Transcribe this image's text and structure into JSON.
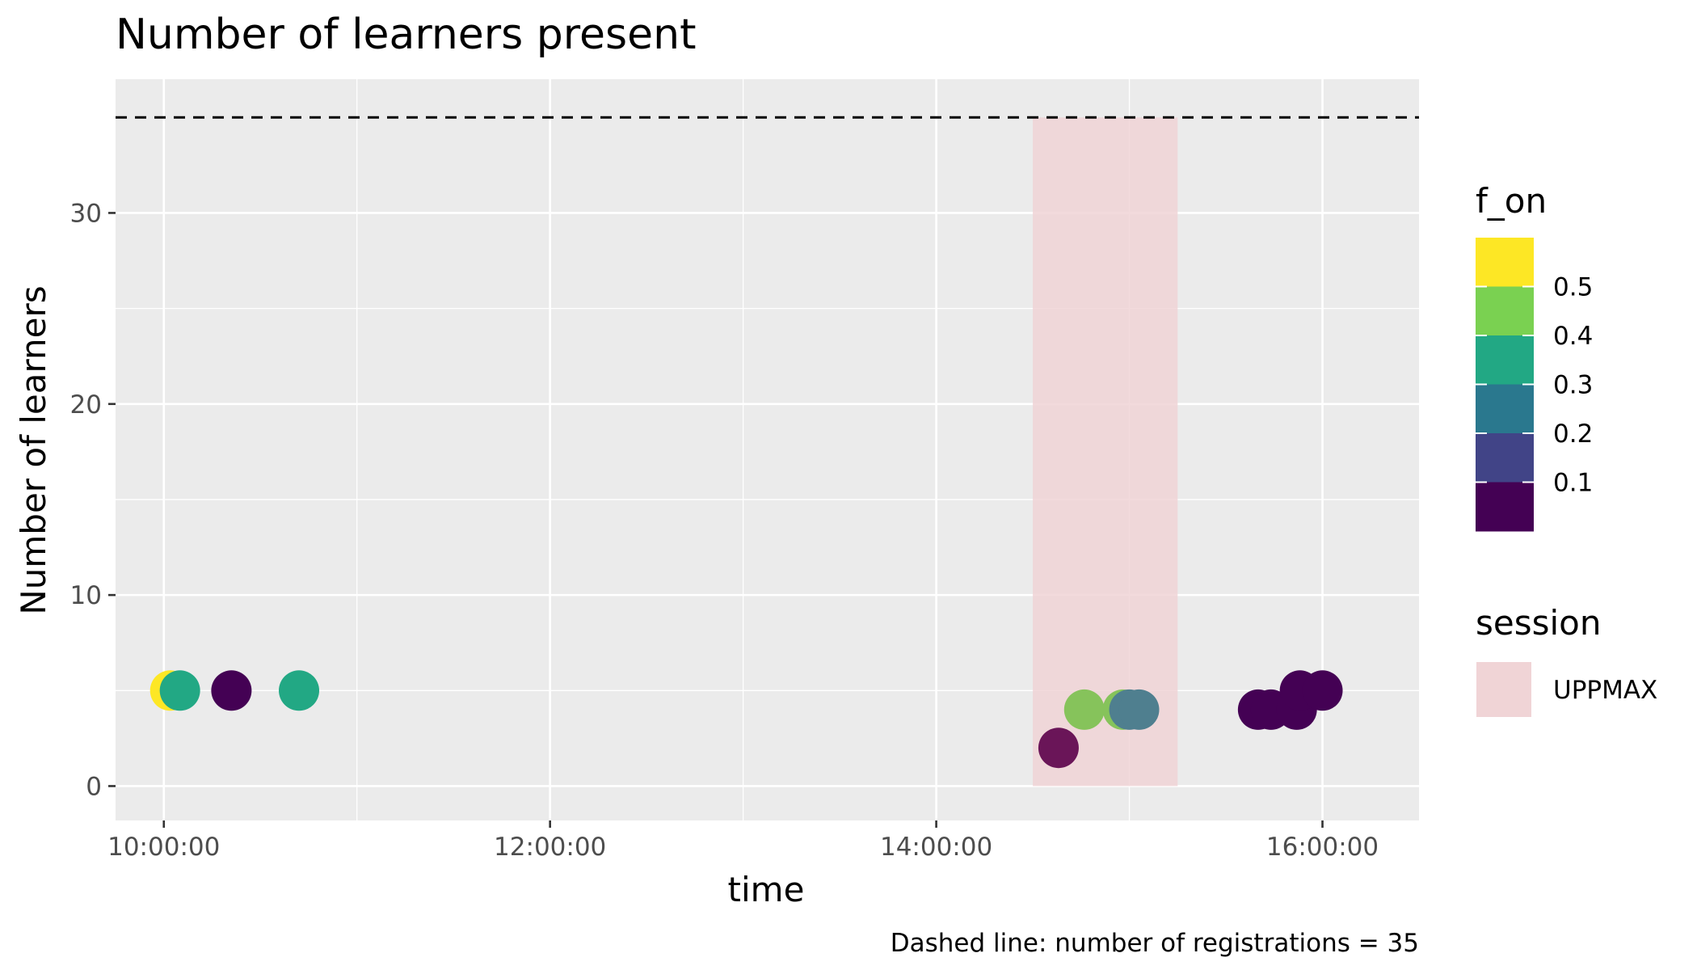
{
  "chart_data": {
    "type": "scatter",
    "title": "Number of learners present",
    "xlabel": "time",
    "ylabel": "Number of learners",
    "caption": "Dashed line: number of registrations = 35",
    "xlim": [
      "09:45:00",
      "16:30:00"
    ],
    "ylim": [
      -1.8,
      37
    ],
    "x_ticks": [
      "10:00:00",
      "12:00:00",
      "14:00:00",
      "16:00:00"
    ],
    "y_ticks": [
      0,
      10,
      20,
      30
    ],
    "grid": true,
    "reference_line": {
      "y": 35,
      "style": "dashed"
    },
    "shaded_region": {
      "name": "UPPMAX",
      "x_start": "14:30:00",
      "x_end": "15:15:00",
      "y_start": 0,
      "y_end": 35,
      "color": "#f0d4d6"
    },
    "color_legend": {
      "title": "f_on",
      "placement": "right",
      "labels": [
        "0.5",
        "0.4",
        "0.3",
        "0.2",
        "0.1"
      ],
      "colors": [
        "#fde725",
        "#7ad151",
        "#22a884",
        "#2a788e",
        "#414487",
        "#440154"
      ]
    },
    "session_legend": {
      "title": "session",
      "entries": [
        {
          "label": "UPPMAX",
          "color": "#f0d4d6"
        }
      ]
    },
    "points": [
      {
        "time": "10:02:00",
        "y": 5,
        "f_on": 0.58,
        "color": "#fde725"
      },
      {
        "time": "10:05:00",
        "y": 5,
        "f_on": 0.33,
        "color": "#22a884"
      },
      {
        "time": "10:21:00",
        "y": 5,
        "f_on": 0.02,
        "color": "#440154"
      },
      {
        "time": "10:42:00",
        "y": 5,
        "f_on": 0.33,
        "color": "#22a884"
      },
      {
        "time": "14:38:00",
        "y": 2,
        "f_on": 0.07,
        "color": "#6a1558"
      },
      {
        "time": "14:46:00",
        "y": 4,
        "f_on": 0.42,
        "color": "#86c35b"
      },
      {
        "time": "14:58:00",
        "y": 4,
        "f_on": 0.42,
        "color": "#86c35b"
      },
      {
        "time": "15:00:00",
        "y": 4,
        "f_on": 0.22,
        "color": "#4f7f8f"
      },
      {
        "time": "15:03:00",
        "y": 4,
        "f_on": 0.22,
        "color": "#4f7f8f"
      },
      {
        "time": "15:40:00",
        "y": 4,
        "f_on": 0.02,
        "color": "#440154"
      },
      {
        "time": "15:44:00",
        "y": 4,
        "f_on": 0.02,
        "color": "#440154"
      },
      {
        "time": "15:52:00",
        "y": 4,
        "f_on": 0.02,
        "color": "#440154"
      },
      {
        "time": "15:53:00",
        "y": 5,
        "f_on": 0.02,
        "color": "#440154"
      },
      {
        "time": "16:00:00",
        "y": 5,
        "f_on": 0.02,
        "color": "#440154"
      }
    ]
  }
}
